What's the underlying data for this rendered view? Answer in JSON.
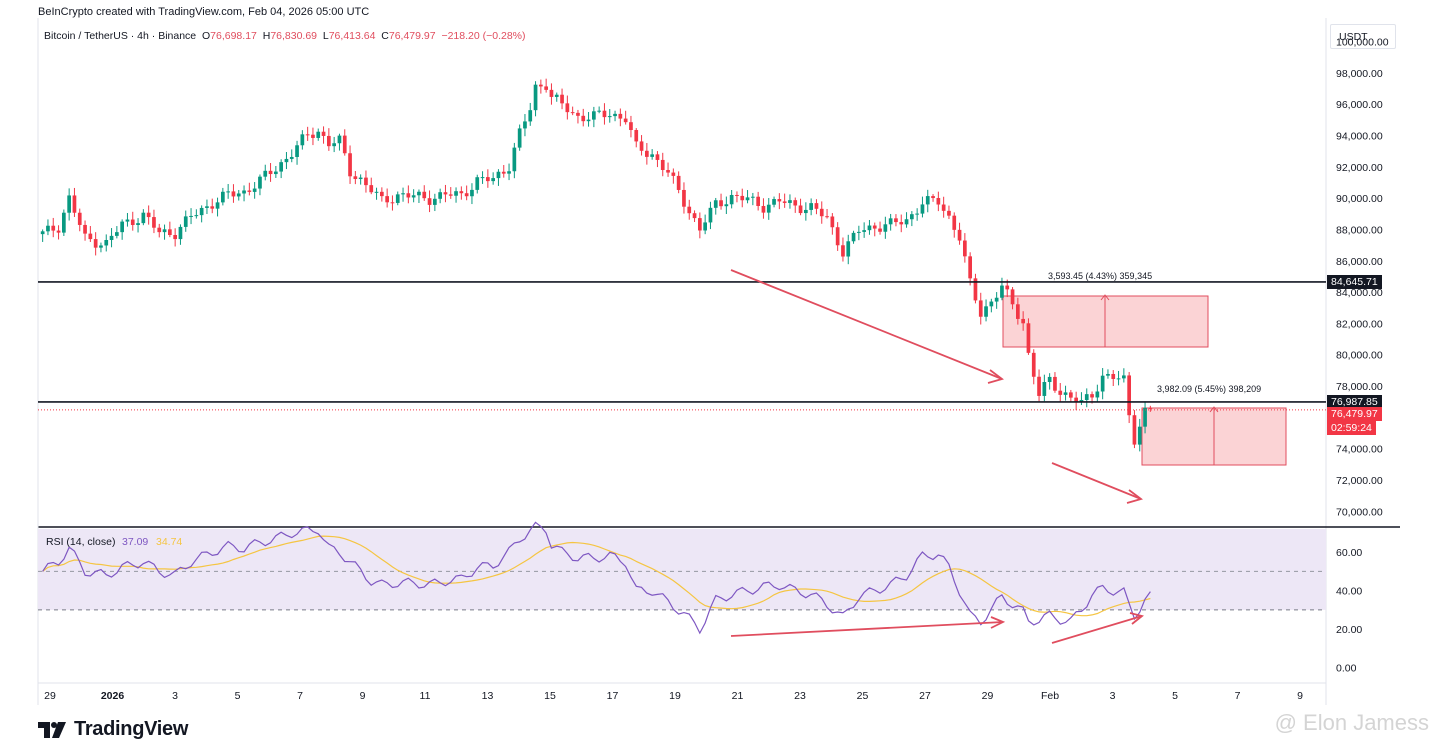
{
  "header": {
    "attribution": "BeInCrypto created with TradingView.com, Feb 04, 2026 05:00 UTC"
  },
  "symbol": {
    "name": "Bitcoin / TetherUS · 4h · Binance",
    "o_label": "O",
    "o": "76,698.17",
    "h_label": "H",
    "h": "76,830.69",
    "l_label": "L",
    "l": "76,413.64",
    "c_label": "C",
    "c": "76,479.97",
    "change": "−218.20 (−0.28%)"
  },
  "currency_button": "USDT",
  "price_tags": {
    "upper_level": "84,645.71",
    "lower_level": "76,987.85",
    "last_price": "76,479.97",
    "countdown": "02:59:24"
  },
  "measurements": {
    "upper_box": "3,593.45 (4.43%) 359,345",
    "lower_box": "3,982.09 (5.45%) 398,209"
  },
  "rsi": {
    "label": "RSI (14, close)",
    "value": "37.09",
    "ma_value": "34.74"
  },
  "logo": {
    "text": "TradingView"
  },
  "watermark": "@ Elon Jamess",
  "colors": {
    "up": "#089981",
    "down": "#f23645",
    "annotation": "#e04d5e",
    "rsi_line": "#7e57c2",
    "rsi_ma": "#f5c542",
    "rsi_band": "#ede7f6",
    "box_fill": "#fbd3d5"
  },
  "chart_data": {
    "type": "candlestick",
    "y_axis": {
      "ticks": [
        "100,000.00",
        "98,000.00",
        "96,000.00",
        "94,000.00",
        "92,000.00",
        "90,000.00",
        "88,000.00",
        "86,000.00",
        "84,000.00",
        "82,000.00",
        "80,000.00",
        "78,000.00",
        "74,000.00",
        "72,000.00",
        "70,000.00"
      ],
      "ylim": [
        69000,
        101500
      ]
    },
    "x_axis": {
      "ticks": [
        "29",
        "2026",
        "3",
        "5",
        "7",
        "9",
        "11",
        "13",
        "15",
        "17",
        "19",
        "21",
        "23",
        "25",
        "27",
        "29",
        "Feb",
        "3",
        "5",
        "7",
        "9"
      ]
    },
    "price_path": [
      [
        0,
        87700
      ],
      [
        3,
        88200
      ],
      [
        5,
        90000
      ],
      [
        8,
        87400
      ],
      [
        12,
        87100
      ],
      [
        15,
        88300
      ],
      [
        19,
        88900
      ],
      [
        22,
        87800
      ],
      [
        25,
        87800
      ],
      [
        28,
        88800
      ],
      [
        32,
        89700
      ],
      [
        35,
        90200
      ],
      [
        38,
        90400
      ],
      [
        41,
        91100
      ],
      [
        44,
        91900
      ],
      [
        47,
        92900
      ],
      [
        50,
        94000
      ],
      [
        52,
        94300
      ],
      [
        54,
        93500
      ],
      [
        56,
        93600
      ],
      [
        58,
        91700
      ],
      [
        60,
        91200
      ],
      [
        62,
        90500
      ],
      [
        64,
        89800
      ],
      [
        67,
        90200
      ],
      [
        70,
        90100
      ],
      [
        73,
        90000
      ],
      [
        76,
        90200
      ],
      [
        79,
        90200
      ],
      [
        82,
        91100
      ],
      [
        85,
        91200
      ],
      [
        88,
        92100
      ],
      [
        90,
        94100
      ],
      [
        92,
        95700
      ],
      [
        93,
        97100
      ],
      [
        95,
        97300
      ],
      [
        96,
        96500
      ],
      [
        98,
        95900
      ],
      [
        101,
        95200
      ],
      [
        104,
        95200
      ],
      [
        107,
        95400
      ],
      [
        110,
        95100
      ],
      [
        112,
        93200
      ],
      [
        115,
        92800
      ],
      [
        118,
        91600
      ],
      [
        121,
        89800
      ],
      [
        124,
        88000
      ],
      [
        127,
        89600
      ],
      [
        130,
        90100
      ],
      [
        133,
        89900
      ],
      [
        136,
        89500
      ],
      [
        139,
        89800
      ],
      [
        142,
        89500
      ],
      [
        145,
        89400
      ],
      [
        148,
        88700
      ],
      [
        151,
        86600
      ],
      [
        154,
        87900
      ],
      [
        157,
        88200
      ],
      [
        160,
        88300
      ],
      [
        163,
        88600
      ],
      [
        166,
        89700
      ],
      [
        169,
        89800
      ],
      [
        171,
        88800
      ],
      [
        173,
        87500
      ],
      [
        175,
        84500
      ],
      [
        177,
        82700
      ],
      [
        179,
        83400
      ],
      [
        181,
        84300
      ],
      [
        183,
        83200
      ],
      [
        185,
        82100
      ],
      [
        186,
        80000
      ],
      [
        188,
        77400
      ],
      [
        190,
        78400
      ],
      [
        192,
        77700
      ],
      [
        194,
        77200
      ],
      [
        196,
        76900
      ],
      [
        198,
        77500
      ],
      [
        200,
        78600
      ],
      [
        202,
        78500
      ],
      [
        204,
        78400
      ],
      [
        205,
        76200
      ],
      [
        206,
        74700
      ],
      [
        208,
        76300
      ],
      [
        209,
        76500
      ]
    ],
    "rsi_path": [
      [
        0,
        50
      ],
      [
        3,
        55
      ],
      [
        5,
        62
      ],
      [
        8,
        50
      ],
      [
        12,
        48
      ],
      [
        15,
        52
      ],
      [
        19,
        55
      ],
      [
        22,
        50
      ],
      [
        25,
        48
      ],
      [
        28,
        55
      ],
      [
        32,
        60
      ],
      [
        35,
        63
      ],
      [
        38,
        62
      ],
      [
        41,
        65
      ],
      [
        44,
        67
      ],
      [
        47,
        70
      ],
      [
        50,
        71
      ],
      [
        52,
        72
      ],
      [
        54,
        62
      ],
      [
        56,
        60
      ],
      [
        58,
        55
      ],
      [
        60,
        50
      ],
      [
        62,
        45
      ],
      [
        64,
        43
      ],
      [
        67,
        44
      ],
      [
        70,
        44
      ],
      [
        73,
        43
      ],
      [
        76,
        45
      ],
      [
        79,
        46
      ],
      [
        82,
        52
      ],
      [
        85,
        53
      ],
      [
        88,
        60
      ],
      [
        90,
        67
      ],
      [
        92,
        71
      ],
      [
        93,
        73
      ],
      [
        95,
        72
      ],
      [
        96,
        64
      ],
      [
        98,
        60
      ],
      [
        101,
        57
      ],
      [
        104,
        57
      ],
      [
        107,
        58
      ],
      [
        110,
        55
      ],
      [
        112,
        40
      ],
      [
        115,
        40
      ],
      [
        118,
        34
      ],
      [
        121,
        28
      ],
      [
        124,
        20
      ],
      [
        127,
        35
      ],
      [
        130,
        38
      ],
      [
        133,
        40
      ],
      [
        136,
        42
      ],
      [
        139,
        43
      ],
      [
        142,
        40
      ],
      [
        145,
        38
      ],
      [
        148,
        33
      ],
      [
        151,
        26
      ],
      [
        154,
        37
      ],
      [
        157,
        40
      ],
      [
        160,
        43
      ],
      [
        163,
        48
      ],
      [
        166,
        58
      ],
      [
        169,
        59
      ],
      [
        171,
        52
      ],
      [
        173,
        40
      ],
      [
        175,
        27
      ],
      [
        177,
        24
      ],
      [
        179,
        30
      ],
      [
        181,
        37
      ],
      [
        183,
        33
      ],
      [
        185,
        29
      ],
      [
        186,
        24
      ],
      [
        188,
        25
      ],
      [
        190,
        27
      ],
      [
        192,
        25
      ],
      [
        194,
        24
      ],
      [
        196,
        30
      ],
      [
        198,
        38
      ],
      [
        200,
        41
      ],
      [
        202,
        40
      ],
      [
        204,
        39
      ],
      [
        205,
        32
      ],
      [
        206,
        27
      ],
      [
        208,
        35
      ],
      [
        209,
        37
      ]
    ],
    "rsi_axis": {
      "ticks": [
        "60.00",
        "40.00",
        "20.00",
        "0.00"
      ],
      "ylim": [
        -8,
        72
      ],
      "upper_band": 50,
      "lower_band": 30
    },
    "horizontal_levels": [
      84645.71,
      76987.85
    ],
    "last_price": 76479.97
  }
}
